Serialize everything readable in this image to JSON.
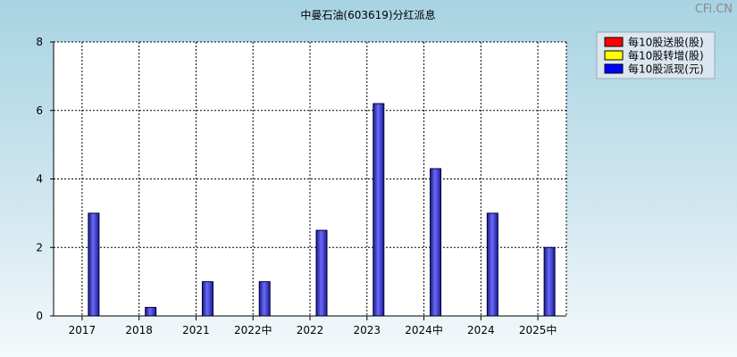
{
  "chart_data": {
    "type": "bar",
    "title": "中曼石油(603619)分红派息",
    "categories": [
      "2017",
      "2018",
      "2021",
      "2022中",
      "2022",
      "2023",
      "2024中",
      "2024",
      "2025中"
    ],
    "series": [
      {
        "name": "每10股送股(股)",
        "color": "#ff0000",
        "values": [
          0,
          0,
          0,
          0,
          0,
          0,
          0,
          0,
          0
        ]
      },
      {
        "name": "每10股转增(股)",
        "color": "#ffff00",
        "values": [
          0,
          0,
          0,
          0,
          0,
          0,
          0,
          0,
          0
        ]
      },
      {
        "name": "每10股派现(元)",
        "color": "#0000ff",
        "values": [
          3,
          0.25,
          1,
          1,
          2.5,
          6.2,
          4.3,
          3,
          2
        ]
      }
    ],
    "ylim": [
      0,
      8
    ],
    "yticks": [
      0,
      2,
      4,
      6,
      8
    ],
    "grid": true,
    "legend": "top-right"
  },
  "watermark": "CFi.CN"
}
